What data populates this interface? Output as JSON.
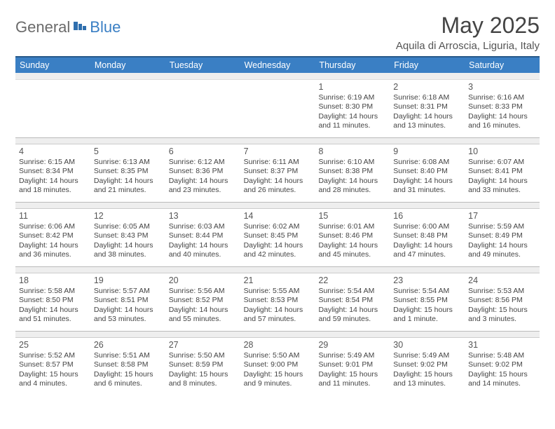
{
  "brand": {
    "general": "General",
    "blue": "Blue"
  },
  "title": "May 2025",
  "location": "Aquila di Arroscia, Liguria, Italy",
  "day_names": [
    "Sunday",
    "Monday",
    "Tuesday",
    "Wednesday",
    "Thursday",
    "Friday",
    "Saturday"
  ],
  "colors": {
    "header_bg": "#3a7fc4",
    "header_border": "#295a8a",
    "spacer_bg": "#eeeeee",
    "text": "#444444"
  },
  "weeks": [
    [
      {
        "n": "",
        "sr": "",
        "ss": "",
        "dl": ""
      },
      {
        "n": "",
        "sr": "",
        "ss": "",
        "dl": ""
      },
      {
        "n": "",
        "sr": "",
        "ss": "",
        "dl": ""
      },
      {
        "n": "",
        "sr": "",
        "ss": "",
        "dl": ""
      },
      {
        "n": "1",
        "sr": "Sunrise: 6:19 AM",
        "ss": "Sunset: 8:30 PM",
        "dl": "Daylight: 14 hours and 11 minutes."
      },
      {
        "n": "2",
        "sr": "Sunrise: 6:18 AM",
        "ss": "Sunset: 8:31 PM",
        "dl": "Daylight: 14 hours and 13 minutes."
      },
      {
        "n": "3",
        "sr": "Sunrise: 6:16 AM",
        "ss": "Sunset: 8:33 PM",
        "dl": "Daylight: 14 hours and 16 minutes."
      }
    ],
    [
      {
        "n": "4",
        "sr": "Sunrise: 6:15 AM",
        "ss": "Sunset: 8:34 PM",
        "dl": "Daylight: 14 hours and 18 minutes."
      },
      {
        "n": "5",
        "sr": "Sunrise: 6:13 AM",
        "ss": "Sunset: 8:35 PM",
        "dl": "Daylight: 14 hours and 21 minutes."
      },
      {
        "n": "6",
        "sr": "Sunrise: 6:12 AM",
        "ss": "Sunset: 8:36 PM",
        "dl": "Daylight: 14 hours and 23 minutes."
      },
      {
        "n": "7",
        "sr": "Sunrise: 6:11 AM",
        "ss": "Sunset: 8:37 PM",
        "dl": "Daylight: 14 hours and 26 minutes."
      },
      {
        "n": "8",
        "sr": "Sunrise: 6:10 AM",
        "ss": "Sunset: 8:38 PM",
        "dl": "Daylight: 14 hours and 28 minutes."
      },
      {
        "n": "9",
        "sr": "Sunrise: 6:08 AM",
        "ss": "Sunset: 8:40 PM",
        "dl": "Daylight: 14 hours and 31 minutes."
      },
      {
        "n": "10",
        "sr": "Sunrise: 6:07 AM",
        "ss": "Sunset: 8:41 PM",
        "dl": "Daylight: 14 hours and 33 minutes."
      }
    ],
    [
      {
        "n": "11",
        "sr": "Sunrise: 6:06 AM",
        "ss": "Sunset: 8:42 PM",
        "dl": "Daylight: 14 hours and 36 minutes."
      },
      {
        "n": "12",
        "sr": "Sunrise: 6:05 AM",
        "ss": "Sunset: 8:43 PM",
        "dl": "Daylight: 14 hours and 38 minutes."
      },
      {
        "n": "13",
        "sr": "Sunrise: 6:03 AM",
        "ss": "Sunset: 8:44 PM",
        "dl": "Daylight: 14 hours and 40 minutes."
      },
      {
        "n": "14",
        "sr": "Sunrise: 6:02 AM",
        "ss": "Sunset: 8:45 PM",
        "dl": "Daylight: 14 hours and 42 minutes."
      },
      {
        "n": "15",
        "sr": "Sunrise: 6:01 AM",
        "ss": "Sunset: 8:46 PM",
        "dl": "Daylight: 14 hours and 45 minutes."
      },
      {
        "n": "16",
        "sr": "Sunrise: 6:00 AM",
        "ss": "Sunset: 8:48 PM",
        "dl": "Daylight: 14 hours and 47 minutes."
      },
      {
        "n": "17",
        "sr": "Sunrise: 5:59 AM",
        "ss": "Sunset: 8:49 PM",
        "dl": "Daylight: 14 hours and 49 minutes."
      }
    ],
    [
      {
        "n": "18",
        "sr": "Sunrise: 5:58 AM",
        "ss": "Sunset: 8:50 PM",
        "dl": "Daylight: 14 hours and 51 minutes."
      },
      {
        "n": "19",
        "sr": "Sunrise: 5:57 AM",
        "ss": "Sunset: 8:51 PM",
        "dl": "Daylight: 14 hours and 53 minutes."
      },
      {
        "n": "20",
        "sr": "Sunrise: 5:56 AM",
        "ss": "Sunset: 8:52 PM",
        "dl": "Daylight: 14 hours and 55 minutes."
      },
      {
        "n": "21",
        "sr": "Sunrise: 5:55 AM",
        "ss": "Sunset: 8:53 PM",
        "dl": "Daylight: 14 hours and 57 minutes."
      },
      {
        "n": "22",
        "sr": "Sunrise: 5:54 AM",
        "ss": "Sunset: 8:54 PM",
        "dl": "Daylight: 14 hours and 59 minutes."
      },
      {
        "n": "23",
        "sr": "Sunrise: 5:54 AM",
        "ss": "Sunset: 8:55 PM",
        "dl": "Daylight: 15 hours and 1 minute."
      },
      {
        "n": "24",
        "sr": "Sunrise: 5:53 AM",
        "ss": "Sunset: 8:56 PM",
        "dl": "Daylight: 15 hours and 3 minutes."
      }
    ],
    [
      {
        "n": "25",
        "sr": "Sunrise: 5:52 AM",
        "ss": "Sunset: 8:57 PM",
        "dl": "Daylight: 15 hours and 4 minutes."
      },
      {
        "n": "26",
        "sr": "Sunrise: 5:51 AM",
        "ss": "Sunset: 8:58 PM",
        "dl": "Daylight: 15 hours and 6 minutes."
      },
      {
        "n": "27",
        "sr": "Sunrise: 5:50 AM",
        "ss": "Sunset: 8:59 PM",
        "dl": "Daylight: 15 hours and 8 minutes."
      },
      {
        "n": "28",
        "sr": "Sunrise: 5:50 AM",
        "ss": "Sunset: 9:00 PM",
        "dl": "Daylight: 15 hours and 9 minutes."
      },
      {
        "n": "29",
        "sr": "Sunrise: 5:49 AM",
        "ss": "Sunset: 9:01 PM",
        "dl": "Daylight: 15 hours and 11 minutes."
      },
      {
        "n": "30",
        "sr": "Sunrise: 5:49 AM",
        "ss": "Sunset: 9:02 PM",
        "dl": "Daylight: 15 hours and 13 minutes."
      },
      {
        "n": "31",
        "sr": "Sunrise: 5:48 AM",
        "ss": "Sunset: 9:02 PM",
        "dl": "Daylight: 15 hours and 14 minutes."
      }
    ]
  ]
}
